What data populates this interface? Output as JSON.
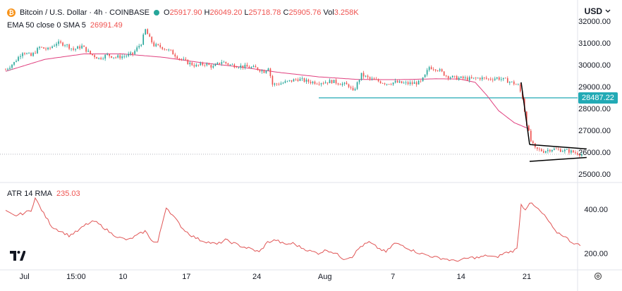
{
  "header": {
    "symbol": "Bitcoin / U.S. Dollar · 4h · COINBASE",
    "ohlc": [
      {
        "k": "O",
        "v": "25917.90"
      },
      {
        "k": "H",
        "v": "26049.20"
      },
      {
        "k": "L",
        "v": "25718.78"
      },
      {
        "k": "C",
        "v": "25905.76"
      }
    ],
    "vol_label": "Vol",
    "vol_value": "3.258K",
    "currency": "USD",
    "ema_label": "EMA 50 close 0 SMA 5",
    "ema_value": "26991.49",
    "atr_label": "ATR 14 RMA",
    "atr_value": "235.03"
  },
  "colors": {
    "up": "#26a69a",
    "down": "#ef5350",
    "ema": "#e0407f",
    "atr": "#e05555",
    "support": "#22aab5",
    "pattern": "#000000",
    "axis_text": "#131722"
  },
  "icons": [
    "bitcoin-icon",
    "status-dot-icon",
    "currency-chevron-icon",
    "tradingview-logo-icon",
    "settings-gear-icon"
  ],
  "chart_data": [
    {
      "type": "candlestick",
      "ylim": [
        25000,
        32000
      ],
      "price_ticks": [
        "32000.00",
        "31000.00",
        "30000.00",
        "29000.00",
        "28000.00",
        "27000.00",
        "26000.00",
        "25000.00"
      ],
      "x_ticks": [
        "Jul",
        "15:00",
        "10",
        "17",
        "24",
        "Aug",
        "7",
        "14",
        "21"
      ],
      "support_level": 28487.22,
      "support_label": "28487.22",
      "last_price": 25905.76,
      "pattern": "bearish-pennant",
      "trend_waypoints": [
        [
          0,
          29780
        ],
        [
          4,
          30100
        ],
        [
          8,
          30600
        ],
        [
          12,
          30400
        ],
        [
          16,
          30800
        ],
        [
          20,
          30700
        ],
        [
          24,
          31000
        ],
        [
          28,
          30950
        ],
        [
          32,
          30700
        ],
        [
          36,
          30850
        ],
        [
          40,
          30500
        ],
        [
          44,
          30300
        ],
        [
          48,
          30450
        ],
        [
          52,
          30350
        ],
        [
          56,
          30400
        ],
        [
          60,
          30500
        ],
        [
          64,
          31000
        ],
        [
          66,
          31600
        ],
        [
          68,
          31200
        ],
        [
          70,
          30900
        ],
        [
          74,
          30800
        ],
        [
          78,
          30600
        ],
        [
          82,
          30300
        ],
        [
          86,
          30100
        ],
        [
          90,
          29950
        ],
        [
          94,
          30050
        ],
        [
          98,
          29900
        ],
        [
          102,
          30150
        ],
        [
          106,
          30000
        ],
        [
          110,
          29950
        ],
        [
          114,
          29900
        ],
        [
          118,
          29850
        ],
        [
          122,
          29700
        ],
        [
          124,
          29900
        ],
        [
          126,
          29100
        ],
        [
          130,
          29150
        ],
        [
          134,
          29250
        ],
        [
          138,
          29350
        ],
        [
          142,
          29250
        ],
        [
          146,
          29200
        ],
        [
          150,
          29200
        ],
        [
          154,
          29250
        ],
        [
          158,
          29150
        ],
        [
          162,
          29050
        ],
        [
          164,
          28750
        ],
        [
          168,
          29550
        ],
        [
          172,
          29350
        ],
        [
          176,
          29250
        ],
        [
          180,
          29150
        ],
        [
          184,
          29200
        ],
        [
          188,
          29150
        ],
        [
          192,
          29150
        ],
        [
          196,
          29200
        ],
        [
          198,
          29500
        ],
        [
          200,
          29900
        ],
        [
          204,
          29800
        ],
        [
          208,
          29500
        ],
        [
          212,
          29400
        ],
        [
          216,
          29380
        ],
        [
          220,
          29350
        ],
        [
          224,
          29400
        ],
        [
          228,
          29350
        ],
        [
          232,
          29400
        ],
        [
          236,
          29300
        ],
        [
          240,
          29150
        ],
        [
          242,
          29050
        ],
        [
          244,
          28500
        ],
        [
          246,
          27300
        ],
        [
          248,
          26500
        ],
        [
          250,
          26150
        ],
        [
          254,
          26050
        ],
        [
          258,
          26150
        ],
        [
          262,
          26100
        ],
        [
          266,
          26050
        ],
        [
          270,
          25950
        ],
        [
          272,
          25905
        ]
      ],
      "ema50": [
        [
          0,
          29700
        ],
        [
          20,
          30250
        ],
        [
          40,
          30500
        ],
        [
          60,
          30500
        ],
        [
          80,
          30350
        ],
        [
          100,
          30100
        ],
        [
          120,
          29900
        ],
        [
          140,
          29650
        ],
        [
          160,
          29450
        ],
        [
          180,
          29330
        ],
        [
          200,
          29320
        ],
        [
          220,
          29360
        ],
        [
          232,
          29350
        ],
        [
          240,
          29200
        ],
        [
          246,
          28600
        ],
        [
          252,
          27900
        ],
        [
          260,
          27350
        ],
        [
          268,
          27050
        ]
      ]
    },
    {
      "type": "line",
      "name": "ATR 14 RMA",
      "ylim": [
        150,
        470
      ],
      "y_ticks": [
        "400.00",
        "200.00"
      ],
      "values": [
        [
          0,
          390
        ],
        [
          4,
          370
        ],
        [
          8,
          380
        ],
        [
          12,
          395
        ],
        [
          14,
          450
        ],
        [
          18,
          380
        ],
        [
          22,
          320
        ],
        [
          26,
          300
        ],
        [
          30,
          280
        ],
        [
          34,
          300
        ],
        [
          38,
          330
        ],
        [
          42,
          345
        ],
        [
          46,
          320
        ],
        [
          50,
          290
        ],
        [
          54,
          270
        ],
        [
          58,
          260
        ],
        [
          62,
          280
        ],
        [
          66,
          300
        ],
        [
          70,
          250
        ],
        [
          72,
          250
        ],
        [
          76,
          410
        ],
        [
          80,
          360
        ],
        [
          84,
          310
        ],
        [
          88,
          280
        ],
        [
          92,
          260
        ],
        [
          96,
          250
        ],
        [
          100,
          240
        ],
        [
          104,
          260
        ],
        [
          108,
          245
        ],
        [
          112,
          230
        ],
        [
          116,
          220
        ],
        [
          120,
          205
        ],
        [
          124,
          250
        ],
        [
          128,
          260
        ],
        [
          132,
          240
        ],
        [
          136,
          245
        ],
        [
          140,
          225
        ],
        [
          144,
          210
        ],
        [
          148,
          200
        ],
        [
          152,
          215
        ],
        [
          156,
          200
        ],
        [
          160,
          175
        ],
        [
          164,
          185
        ],
        [
          168,
          230
        ],
        [
          172,
          250
        ],
        [
          176,
          225
        ],
        [
          180,
          205
        ],
        [
          184,
          245
        ],
        [
          188,
          235
        ],
        [
          192,
          215
        ],
        [
          196,
          200
        ],
        [
          200,
          190
        ],
        [
          204,
          180
        ],
        [
          208,
          175
        ],
        [
          212,
          165
        ],
        [
          216,
          170
        ],
        [
          220,
          180
        ],
        [
          224,
          180
        ],
        [
          228,
          190
        ],
        [
          232,
          180
        ],
        [
          236,
          200
        ],
        [
          240,
          210
        ],
        [
          242,
          220
        ],
        [
          244,
          420
        ],
        [
          246,
          400
        ],
        [
          248,
          430
        ],
        [
          252,
          400
        ],
        [
          256,
          360
        ],
        [
          260,
          300
        ],
        [
          264,
          280
        ],
        [
          268,
          250
        ],
        [
          272,
          235
        ]
      ]
    }
  ]
}
